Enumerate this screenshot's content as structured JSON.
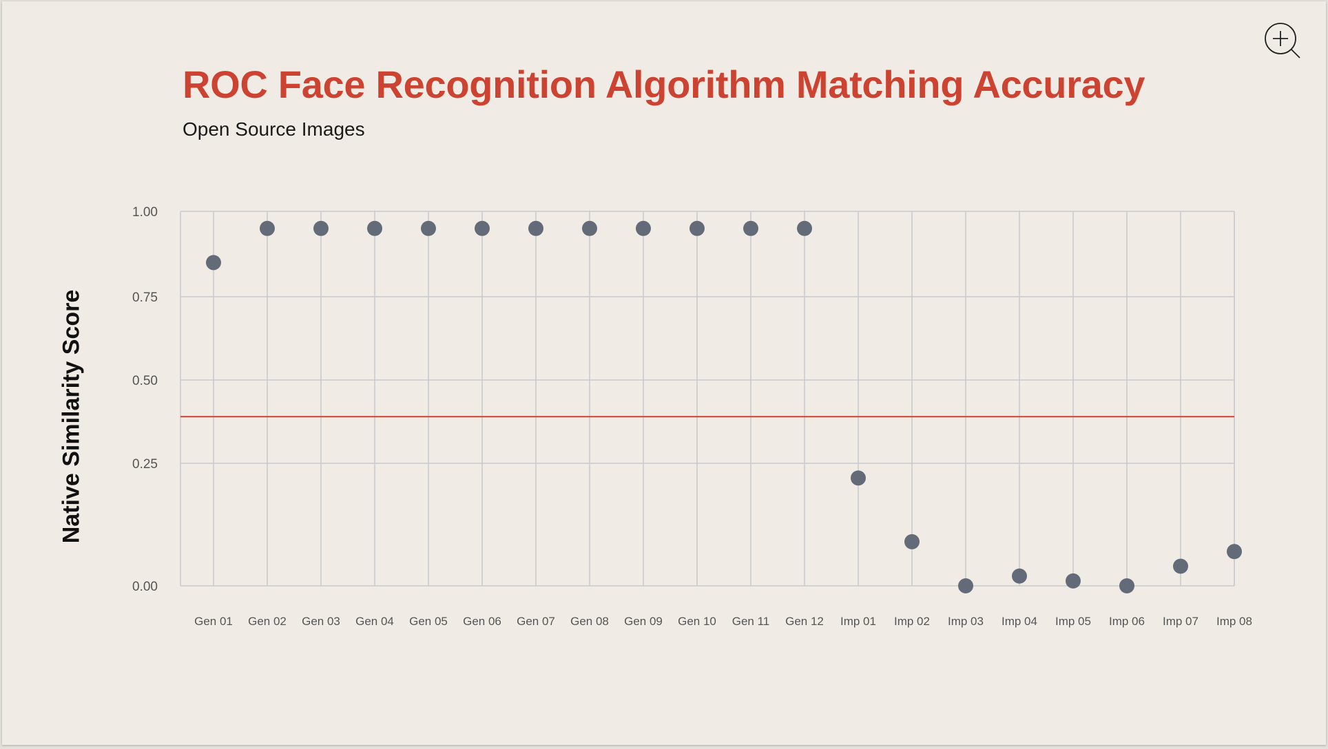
{
  "header": {
    "title": "ROC Face Recognition Algorithm Matching Accuracy",
    "subtitle": "Open Source Images",
    "zoom_icon": "zoom-in-icon"
  },
  "colors": {
    "background": "#f0ece5",
    "title": "#cc4431",
    "threshold": "#d0402f",
    "point": "#646b78",
    "grid": "#c9cacc"
  },
  "chart_data": {
    "type": "scatter",
    "title": "ROC Face Recognition Algorithm Matching Accuracy",
    "subtitle": "Open Source Images",
    "xlabel": "",
    "ylabel": "Native Similarity Score",
    "ylim": [
      0,
      1
    ],
    "y_ticks": [
      1.0,
      0.75,
      0.5,
      0.25,
      0.0
    ],
    "y_tick_labels": [
      "1.00",
      "0.75",
      "0.50",
      "0.25",
      "0.00"
    ],
    "grid": true,
    "categories": [
      "Gen 01",
      "Gen 02",
      "Gen 03",
      "Gen 04",
      "Gen 05",
      "Gen 06",
      "Gen 07",
      "Gen 08",
      "Gen 09",
      "Gen 10",
      "Gen 11",
      "Gen 12",
      "Imp 01",
      "Imp 02",
      "Imp 03",
      "Imp 04",
      "Imp 05",
      "Imp 06",
      "Imp 07",
      "Imp 08"
    ],
    "values": [
      0.85,
      0.95,
      0.95,
      0.95,
      0.95,
      0.95,
      0.95,
      0.95,
      0.95,
      0.95,
      0.95,
      0.95,
      0.22,
      0.09,
      0.0,
      0.02,
      0.01,
      0.0,
      0.04,
      0.07
    ],
    "threshold": 0.39
  }
}
